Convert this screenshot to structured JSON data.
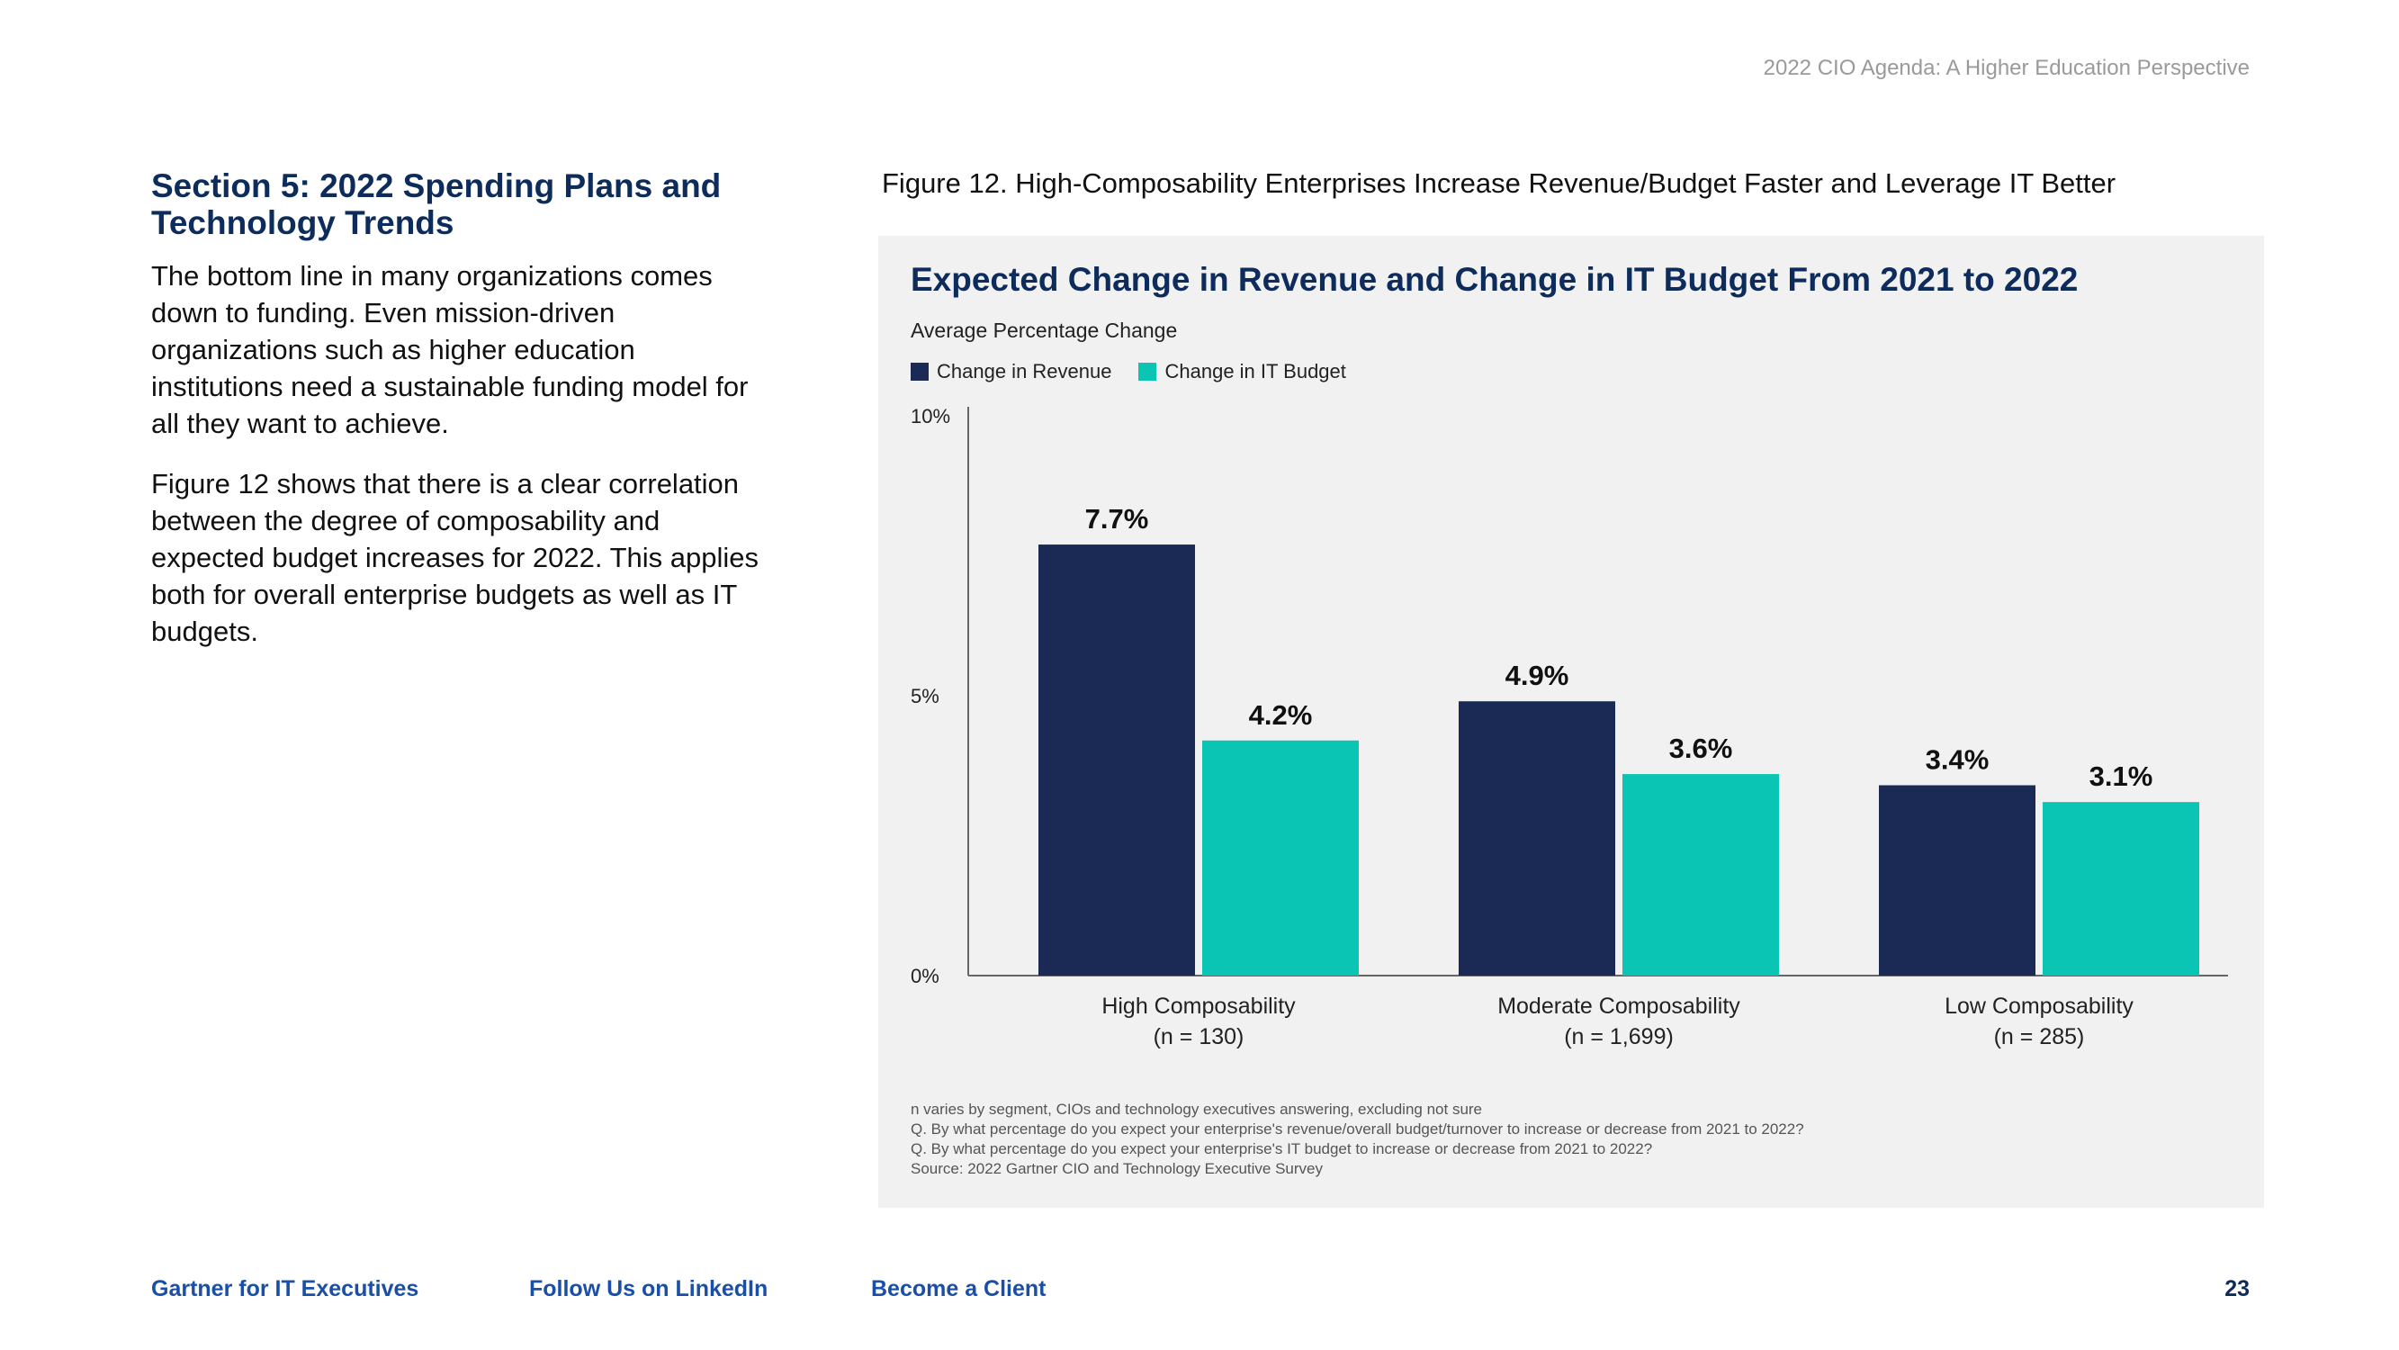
{
  "header": {
    "title": "2022 CIO Agenda: A Higher Education Perspective"
  },
  "left": {
    "section_title": "Section 5: 2022 Spending Plans and Technology Trends",
    "paragraph1": "The bottom line in many organizations comes down to funding. Even mission-driven organizations such as higher education institutions need a sustainable funding model for all they want to achieve.",
    "paragraph2": "Figure 12 shows that there is a clear correlation between the degree of composability and expected budget increases for 2022. This applies both for overall enterprise budgets as well as IT budgets."
  },
  "figure": {
    "caption": "Figure 12. High-Composability Enterprises Increase Revenue/Budget Faster and Leverage IT Better"
  },
  "chart_data": {
    "type": "bar",
    "title": "Expected Change in Revenue and Change in IT Budget From 2021 to 2022",
    "subtitle": "Average Percentage Change",
    "ylabel": "",
    "xlabel": "",
    "ylim": [
      0,
      10
    ],
    "yticks": [
      {
        "value": 0,
        "label": "0%"
      },
      {
        "value": 5,
        "label": "5%"
      },
      {
        "value": 10,
        "label": "10%"
      }
    ],
    "categories": [
      {
        "name": "High Composability",
        "n": "(n = 130)"
      },
      {
        "name": "Moderate Composability",
        "n": "(n = 1,699)"
      },
      {
        "name": "Low Composability",
        "n": "(n = 285)"
      }
    ],
    "series": [
      {
        "name": "Change in Revenue",
        "color": "#1a2a55",
        "values": [
          7.7,
          4.9,
          3.4
        ],
        "labels": [
          "7.7%",
          "4.9%",
          "3.4%"
        ]
      },
      {
        "name": "Change in IT Budget",
        "color": "#0ac4b4",
        "values": [
          4.2,
          3.6,
          3.1
        ],
        "labels": [
          "4.2%",
          "3.6%",
          "3.1%"
        ]
      }
    ],
    "legend_position": "top-left",
    "grid": false
  },
  "footnotes": [
    "n varies by segment, CIOs and technology executives answering, excluding not sure",
    "Q. By what percentage do you expect your enterprise's revenue/overall budget/turnover to increase or decrease from 2021 to 2022?",
    "Q. By what percentage do you expect your enterprise's IT budget to increase or decrease from 2021 to 2022?",
    "Source: 2022 Gartner CIO and Technology Executive Survey"
  ],
  "footer": {
    "link1": "Gartner for IT Executives",
    "link2": "Follow Us on LinkedIn",
    "link3": "Become a Client",
    "page_number": "23"
  }
}
